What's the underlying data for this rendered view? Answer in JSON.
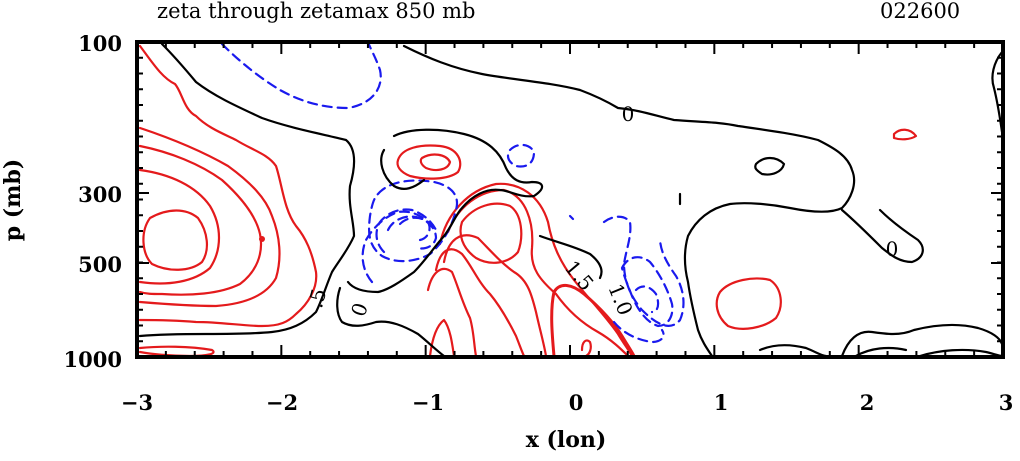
{
  "chart_data": {
    "type": "contour",
    "title": "zeta through zetamax 850 mb",
    "subtitle": "022600",
    "xlabel": "x (lon)",
    "ylabel": "p (mb)",
    "xlim": [
      -3,
      3
    ],
    "x_ticks": [
      -3,
      -2,
      -1,
      0,
      1,
      2,
      3
    ],
    "x_tick_labels": [
      "−3",
      "−2",
      "−1",
      "0",
      "1",
      "2",
      "3"
    ],
    "y_ticks": [
      100,
      300,
      500,
      1000
    ],
    "y_tick_labels": [
      "100",
      "300",
      "500",
      "1000"
    ],
    "y_scale": "log (inverted)",
    "contour_labels": [
      ".5",
      "0",
      "0",
      "0",
      "1.5",
      "1.0"
    ],
    "colors": {
      "positive": "#e41a1c",
      "negative": "#1a1aee",
      "zero": "#000000"
    }
  }
}
